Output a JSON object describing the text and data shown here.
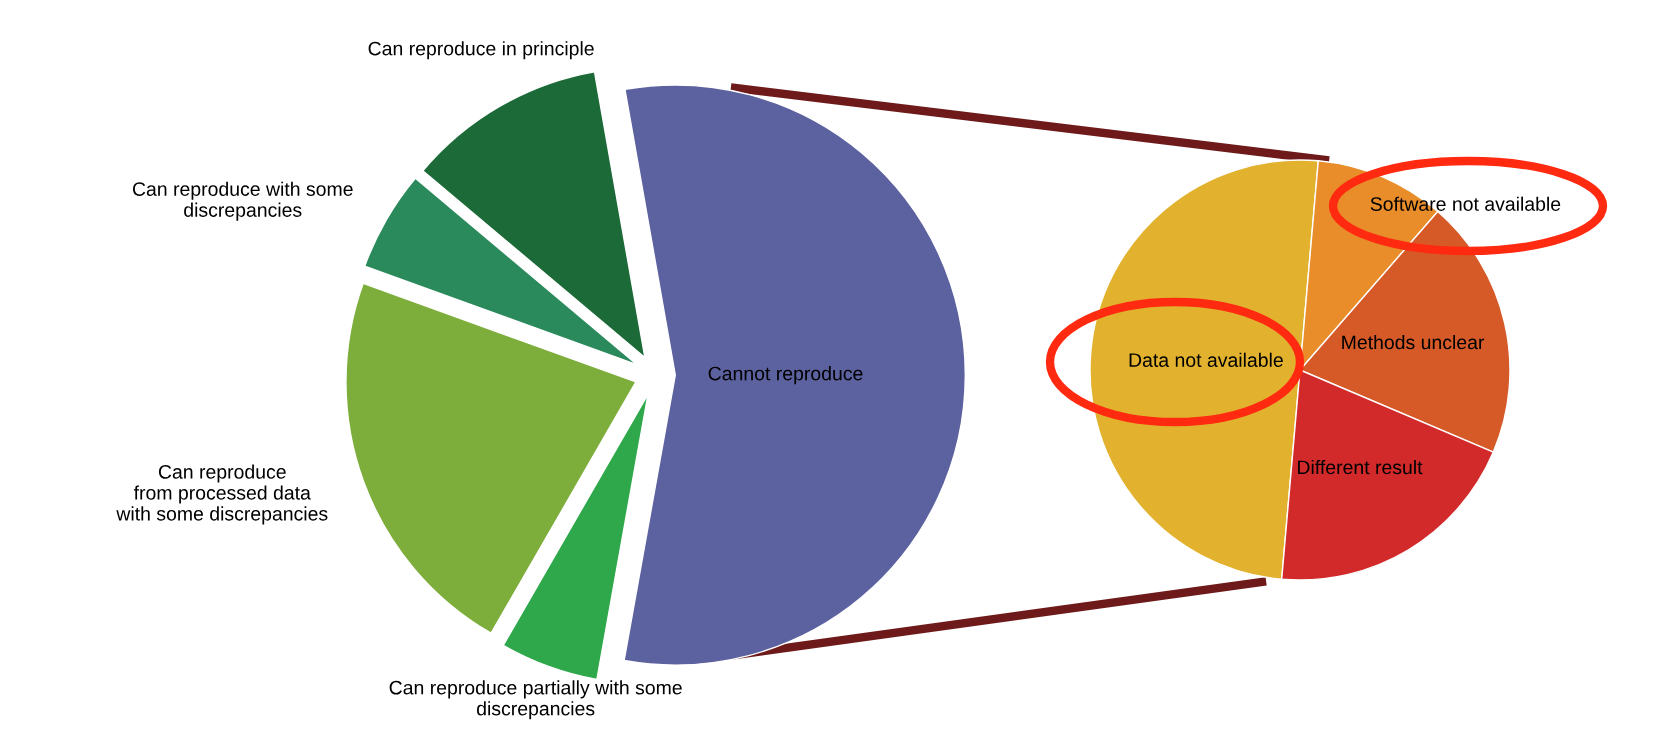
{
  "chart_data": [
    {
      "type": "pie",
      "categories": [
        "Can reproduce in principle",
        "Can reproduce with some\ndiscrepancies",
        "Can reproduce\nfrom processed data\nwith some discrepancies",
        "Can reproduce partially with some\ndiscrepancies",
        "Cannot reproduce"
      ],
      "values": [
        11.1,
        5.6,
        22.2,
        5.5,
        55.6
      ],
      "colors": [
        "#1c6a38",
        "#2b8a5c",
        "#7dae3c",
        "#2ea84a",
        "#5c619f"
      ]
    },
    {
      "type": "pie",
      "categories": [
        "Data not available",
        "Software not available",
        "Methods unclear",
        "Different result"
      ],
      "values": [
        50,
        10,
        20,
        20
      ],
      "colors": [
        "#e2b22e",
        "#e88d2a",
        "#d65a28",
        "#d22a2a"
      ]
    }
  ]
}
